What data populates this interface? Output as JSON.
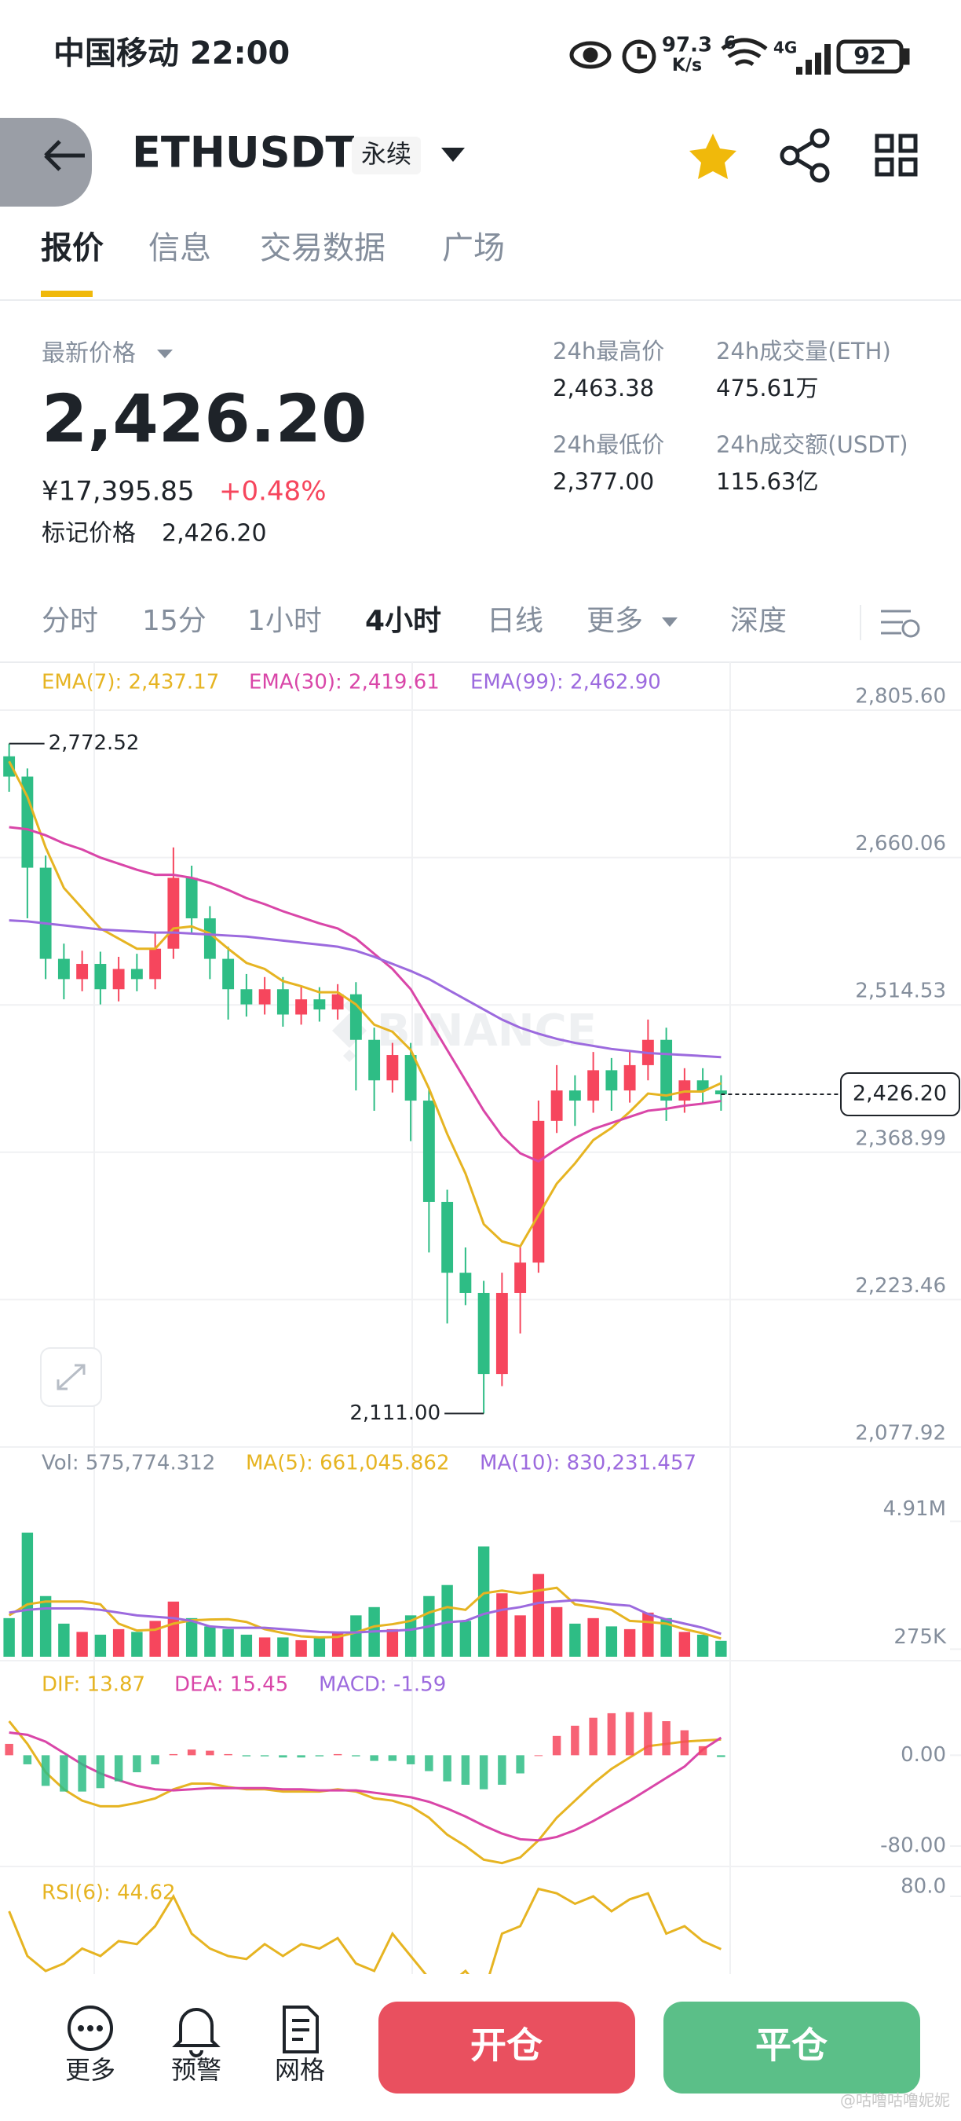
{
  "status_bar": {
    "carrier_time": "中国移动 22:00",
    "speed": "97.3",
    "speed_unit": "K/s",
    "wifi": "6",
    "network": "4G",
    "battery": "92"
  },
  "header": {
    "symbol": "ETHUSDT",
    "contract": "永续"
  },
  "tabs": [
    "报价",
    "信息",
    "交易数据",
    "广场"
  ],
  "selected_tab": 0,
  "ticker": {
    "last_label": "最新价格",
    "last_price": "2,426.20",
    "cny_price": "¥17,395.85",
    "change": "+0.48%",
    "mark_label": "标记价格",
    "mark_price": "2,426.20",
    "stats": [
      {
        "label": "24h最高价",
        "value": "2,463.38"
      },
      {
        "label": "24h成交量(ETH)",
        "value": "475.61万"
      },
      {
        "label": "24h最低价",
        "value": "2,377.00"
      },
      {
        "label": "24h成交额(USDT)",
        "value": "115.63亿"
      }
    ]
  },
  "intervals": [
    "分时",
    "15分",
    "1小时",
    "4小时",
    "日线",
    "更多",
    "深度"
  ],
  "selected_interval": 3,
  "chart_data": [
    {
      "type": "candlestick",
      "watermark": "BINANCE",
      "up_color": "#f6465d",
      "down_color": "#2ebd85",
      "grid": true,
      "ylim": [
        2077.92,
        2805.6
      ],
      "yticks": [
        {
          "value": 2805.6,
          "label": "2,805.60"
        },
        {
          "value": 2660.06,
          "label": "2,660.06"
        },
        {
          "value": 2514.53,
          "label": "2,514.53"
        },
        {
          "value": 2368.99,
          "label": "2,368.99"
        },
        {
          "value": 2223.46,
          "label": "2,223.46"
        },
        {
          "value": 2077.92,
          "label": "2,077.92"
        }
      ],
      "high_label": "2,772.52",
      "low_label": "2,111.00",
      "last_price": {
        "value": 2426.2,
        "label": "2,426.20"
      },
      "candles": [
        [
          2760,
          2772.52,
          2725,
          2740
        ],
        [
          2740,
          2748,
          2600,
          2650
        ],
        [
          2650,
          2662,
          2540,
          2560
        ],
        [
          2560,
          2575,
          2520,
          2540
        ],
        [
          2540,
          2568,
          2528,
          2555
        ],
        [
          2555,
          2567,
          2515,
          2530
        ],
        [
          2530,
          2562,
          2518,
          2550
        ],
        [
          2550,
          2565,
          2528,
          2540
        ],
        [
          2540,
          2585,
          2530,
          2570
        ],
        [
          2570,
          2670,
          2560,
          2640
        ],
        [
          2640,
          2652,
          2585,
          2600
        ],
        [
          2600,
          2612,
          2540,
          2560
        ],
        [
          2560,
          2572,
          2500,
          2530
        ],
        [
          2530,
          2545,
          2503,
          2515
        ],
        [
          2515,
          2542,
          2505,
          2530
        ],
        [
          2530,
          2542,
          2493,
          2505
        ],
        [
          2505,
          2532,
          2495,
          2520
        ],
        [
          2520,
          2532,
          2498,
          2510
        ],
        [
          2510,
          2535,
          2500,
          2525
        ],
        [
          2525,
          2537,
          2430,
          2480
        ],
        [
          2480,
          2492,
          2410,
          2440
        ],
        [
          2440,
          2477,
          2428,
          2465
        ],
        [
          2465,
          2477,
          2380,
          2420
        ],
        [
          2420,
          2432,
          2270,
          2320
        ],
        [
          2320,
          2332,
          2200,
          2250
        ],
        [
          2250,
          2275,
          2218,
          2230
        ],
        [
          2230,
          2242,
          2111,
          2150
        ],
        [
          2150,
          2250,
          2138,
          2230
        ],
        [
          2230,
          2275,
          2190,
          2260
        ],
        [
          2260,
          2420,
          2250,
          2400
        ],
        [
          2400,
          2455,
          2388,
          2430
        ],
        [
          2430,
          2445,
          2395,
          2420
        ],
        [
          2420,
          2468,
          2408,
          2450
        ],
        [
          2450,
          2462,
          2410,
          2430
        ],
        [
          2430,
          2470,
          2418,
          2455
        ],
        [
          2455,
          2500,
          2440,
          2480
        ],
        [
          2480,
          2492,
          2400,
          2420
        ],
        [
          2420,
          2452,
          2408,
          2440
        ],
        [
          2440,
          2452,
          2418,
          2430
        ],
        [
          2430,
          2445,
          2410,
          2426.2
        ]
      ],
      "series": [
        {
          "name": "EMA(7): 2,437.17",
          "type": "line",
          "color": "#e6b422",
          "values": [
            2755,
            2720,
            2670,
            2630,
            2610,
            2590,
            2580,
            2570,
            2570,
            2590,
            2592,
            2585,
            2570,
            2556,
            2550,
            2538,
            2533,
            2527,
            2527,
            2515,
            2495,
            2488,
            2470,
            2432,
            2387,
            2348,
            2298,
            2281,
            2276,
            2307,
            2338,
            2358,
            2381,
            2393,
            2409,
            2427,
            2425,
            2429,
            2429,
            2437.17
          ]
        },
        {
          "name": "EMA(30): 2,419.61",
          "type": "line",
          "color": "#d946a8",
          "values": [
            2690,
            2688,
            2682,
            2674,
            2668,
            2660,
            2654,
            2648,
            2643,
            2643,
            2640,
            2635,
            2628,
            2620,
            2614,
            2607,
            2601,
            2595,
            2590,
            2580,
            2565,
            2550,
            2530,
            2500,
            2470,
            2440,
            2410,
            2385,
            2368,
            2360,
            2372,
            2383,
            2392,
            2398,
            2404,
            2410,
            2412,
            2415,
            2417,
            2419.61
          ]
        },
        {
          "name": "EMA(99): 2,462.90",
          "type": "line",
          "color": "#9c6ade",
          "values": [
            2598,
            2597,
            2595,
            2593,
            2591,
            2589,
            2588,
            2587,
            2586,
            2586,
            2585,
            2584,
            2583,
            2582,
            2580,
            2578,
            2576,
            2574,
            2572,
            2568,
            2562,
            2555,
            2548,
            2540,
            2530,
            2520,
            2510,
            2500,
            2492,
            2486,
            2481,
            2477,
            2474,
            2471,
            2469,
            2467,
            2466,
            2465,
            2464,
            2462.9
          ]
        }
      ]
    },
    {
      "type": "bar",
      "grid": false,
      "ylim": [
        0,
        6380000
      ],
      "yticks": [
        {
          "value": 4910000,
          "label": "4.91M"
        },
        {
          "value": 275000,
          "label": "275K"
        }
      ],
      "series": [
        {
          "name": "Vol: 575,774.312",
          "color": "#848e9c",
          "values": [
            1400000,
            4500000,
            2200000,
            1200000,
            900000,
            800000,
            1000000,
            900000,
            1300000,
            2000000,
            1400000,
            1100000,
            1000000,
            800000,
            700000,
            700000,
            600000,
            700000,
            900000,
            1500000,
            1800000,
            1000000,
            1500000,
            2200000,
            2600000,
            1300000,
            4000000,
            2300000,
            1500000,
            3000000,
            1800000,
            1200000,
            1400000,
            1100000,
            1000000,
            1600000,
            1400000,
            900000,
            800000,
            575774.312
          ]
        },
        {
          "name": "MA(5): 661,045.862",
          "type": "line",
          "color": "#e6b422",
          "values": [
            1500000,
            1900000,
            2000000,
            2000000,
            2000000,
            1900000,
            1200000,
            950000,
            980000,
            1200000,
            1320000,
            1350000,
            1360000,
            1260000,
            1000000,
            860000,
            740000,
            700000,
            720000,
            880000,
            1100000,
            1180000,
            1300000,
            1600000,
            1800000,
            1700000,
            2300000,
            2400000,
            2300000,
            2400000,
            2500000,
            1900000,
            1800000,
            1700000,
            1300000,
            1260000,
            1200000,
            1000000,
            850000,
            661045.862
          ]
        },
        {
          "name": "MA(10): 830,231.457",
          "type": "line",
          "color": "#9c6ade",
          "values": [
            1600000,
            1700000,
            1750000,
            1750000,
            1750000,
            1700000,
            1600000,
            1500000,
            1450000,
            1400000,
            1300000,
            1100000,
            1050000,
            1050000,
            1050000,
            1000000,
            950000,
            900000,
            880000,
            880000,
            920000,
            940000,
            980000,
            1100000,
            1250000,
            1300000,
            1550000,
            1700000,
            1800000,
            1950000,
            2000000,
            2050000,
            2000000,
            1900000,
            1850000,
            1550000,
            1350000,
            1200000,
            1050000,
            830231.457
          ]
        }
      ]
    },
    {
      "type": "bar",
      "grid": false,
      "ylim": [
        -98,
        75
      ],
      "yticks": [
        {
          "value": 0,
          "label": "0.00"
        },
        {
          "value": -80,
          "label": "-80.00"
        }
      ],
      "series": [
        {
          "name": "DIF: 13.87",
          "type": "line",
          "color": "#e6b422",
          "values": [
            30,
            10,
            -15,
            -30,
            -40,
            -45,
            -45,
            -42,
            -38,
            -30,
            -25,
            -25,
            -28,
            -30,
            -30,
            -32,
            -32,
            -32,
            -30,
            -32,
            -38,
            -40,
            -45,
            -55,
            -70,
            -80,
            -92,
            -95,
            -90,
            -75,
            -55,
            -40,
            -25,
            -12,
            -2,
            8,
            10,
            12,
            13,
            13.87
          ]
        },
        {
          "name": "DEA: 15.45",
          "type": "line",
          "color": "#d946a8",
          "values": [
            20,
            18,
            12,
            2,
            -8,
            -16,
            -22,
            -27,
            -30,
            -31,
            -30,
            -29,
            -29,
            -29,
            -29,
            -30,
            -30,
            -31,
            -31,
            -31,
            -33,
            -35,
            -37,
            -41,
            -47,
            -54,
            -62,
            -69,
            -74,
            -75,
            -72,
            -66,
            -58,
            -49,
            -40,
            -30,
            -20,
            -10,
            5,
            15.45
          ]
        },
        {
          "name": "MACD: -1.59",
          "color": "#9c6ade",
          "values": [
            10,
            -8,
            -27,
            -32,
            -32,
            -29,
            -23,
            -15,
            -8,
            1,
            5,
            4,
            1,
            -1,
            -1,
            -2,
            -2,
            -1,
            1,
            -1,
            -5,
            -5,
            -8,
            -14,
            -23,
            -26,
            -30,
            -26,
            -16,
            0,
            17,
            26,
            33,
            37,
            38,
            38,
            30,
            22,
            8,
            -1.59
          ]
        }
      ]
    },
    {
      "type": "line",
      "grid": false,
      "ylim": [
        0,
        100
      ],
      "yticks": [
        {
          "value": 80,
          "label": "80.0"
        }
      ],
      "series": [
        {
          "name": "RSI(6): 44.62",
          "color": "#e6b422",
          "values": [
            70,
            40,
            30,
            35,
            45,
            40,
            50,
            48,
            60,
            80,
            55,
            45,
            40,
            38,
            48,
            40,
            48,
            45,
            52,
            35,
            30,
            55,
            40,
            25,
            20,
            30,
            15,
            55,
            60,
            85,
            82,
            75,
            80,
            70,
            78,
            82,
            55,
            60,
            50,
            44.62
          ]
        }
      ]
    }
  ],
  "bottom_bar": {
    "actions": [
      "更多",
      "预警",
      "网格"
    ],
    "open": "开仓",
    "close": "平仓"
  },
  "watermark": "@咕噜咕噜妮妮"
}
